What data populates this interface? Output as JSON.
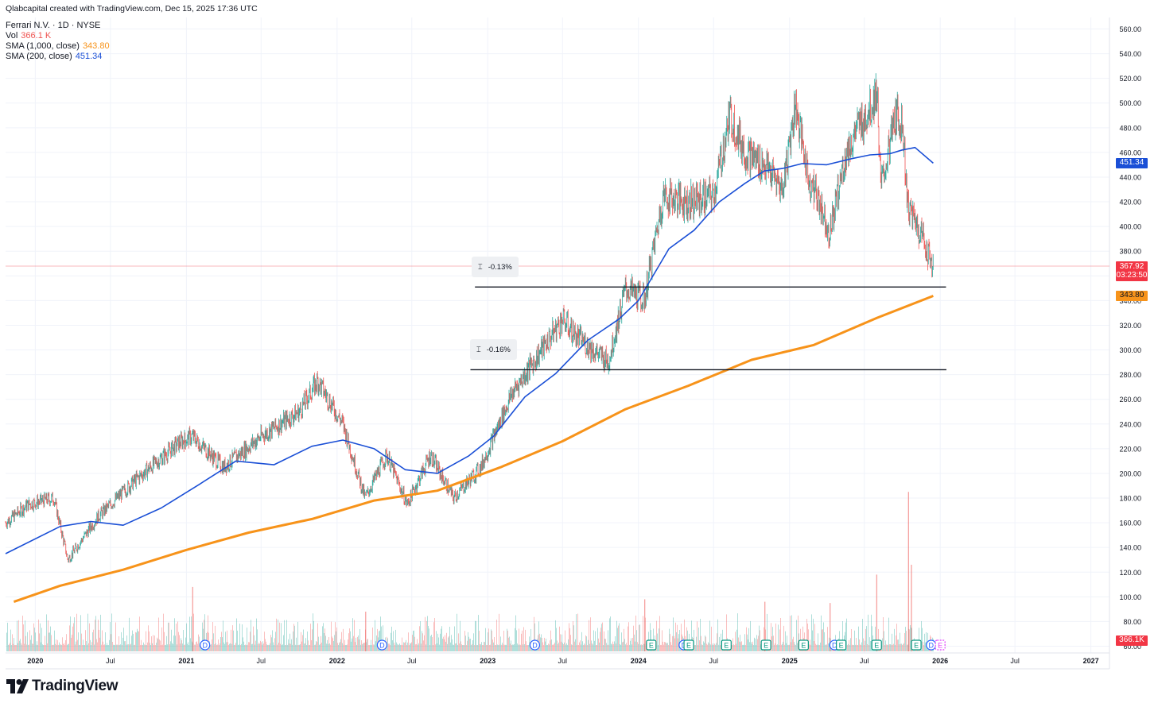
{
  "header": {
    "credit": "Qlabcapital created with TradingView.com, Dec 15, 2025 17:36 UTC",
    "symbol": "Ferrari N.V. · 1D · NYSE",
    "vol_label": "Vol",
    "vol_value": "366.1 K",
    "sma_long_label": "SMA (1,000, close)",
    "sma_long_value": "343.80",
    "sma_short_label": "SMA (200, close)",
    "sma_short_value": "451.34"
  },
  "colors": {
    "up": "#26a69a",
    "down": "#ef5350",
    "sma_long": "#f7931a",
    "sma_short": "#1a4fd6",
    "price_tag": "#f23645",
    "grid": "#f0f3fa"
  },
  "price_tags": {
    "sma_short": "451.34",
    "last_price": "367.92",
    "countdown": "03:23:50",
    "sma_long": "343.80",
    "volume": "366.1K"
  },
  "measurements": [
    {
      "label": "-0.13%",
      "price": 351
    },
    {
      "label": "-0.16%",
      "price": 284
    }
  ],
  "logo_text": "TradingView",
  "chart_data": {
    "type": "line",
    "title": "Ferrari N.V. · 1D · NYSE",
    "y_axis_ticks": [
      "60.00",
      "80.00",
      "100.00",
      "120.00",
      "140.00",
      "160.00",
      "180.00",
      "200.00",
      "220.00",
      "240.00",
      "260.00",
      "280.00",
      "300.00",
      "320.00",
      "340.00",
      "360.00",
      "380.00",
      "400.00",
      "420.00",
      "440.00",
      "460.00",
      "480.00",
      "500.00",
      "520.00",
      "540.00",
      "560.00"
    ],
    "ylim": [
      60,
      565
    ],
    "x_axis_ticks": [
      "2020",
      "Jul",
      "2021",
      "Jul",
      "2022",
      "Jul",
      "2023",
      "Jul",
      "2024",
      "Jul",
      "2025",
      "Jul",
      "2026",
      "Jul",
      "2027"
    ],
    "xlim": [
      "2019-10-21",
      "2027-02-15"
    ],
    "grid": true,
    "scale": "linear",
    "series": [
      {
        "name": "Price",
        "x": [
          "2019-10-21",
          "2019-12-15",
          "2020-02-15",
          "2020-03-20",
          "2020-06-01",
          "2020-09-01",
          "2020-12-15",
          "2021-01-15",
          "2021-04-01",
          "2021-07-01",
          "2021-10-01",
          "2021-11-15",
          "2022-01-15",
          "2022-03-10",
          "2022-05-01",
          "2022-06-20",
          "2022-08-15",
          "2022-10-10",
          "2022-12-15",
          "2023-03-01",
          "2023-05-01",
          "2023-07-01",
          "2023-08-01",
          "2023-10-20",
          "2023-12-01",
          "2024-01-15",
          "2024-03-01",
          "2024-05-01",
          "2024-07-01",
          "2024-08-10",
          "2024-09-15",
          "2024-11-01",
          "2024-12-15",
          "2025-01-15",
          "2025-02-15",
          "2025-03-15",
          "2025-04-08",
          "2025-05-15",
          "2025-06-15",
          "2025-07-15",
          "2025-08-01",
          "2025-08-10",
          "2025-09-15",
          "2025-10-01",
          "2025-10-15",
          "2025-11-15",
          "2025-12-15"
        ],
        "y": [
          160,
          175,
          180,
          130,
          165,
          195,
          225,
          230,
          205,
          230,
          250,
          275,
          240,
          180,
          215,
          175,
          215,
          180,
          205,
          265,
          295,
          325,
          312,
          290,
          350,
          340,
          425,
          420,
          425,
          490,
          460,
          450,
          430,
          500,
          440,
          420,
          395,
          455,
          480,
          495,
          510,
          430,
          490,
          485,
          415,
          395,
          367.92
        ]
      },
      {
        "name": "SMA (200, close)",
        "x": [
          "2019-10-21",
          "2020-03-01",
          "2020-05-15",
          "2020-08-01",
          "2020-11-01",
          "2021-02-01",
          "2021-05-01",
          "2021-08-01",
          "2021-11-01",
          "2022-01-15",
          "2022-04-01",
          "2022-06-15",
          "2022-09-01",
          "2022-11-15",
          "2023-01-15",
          "2023-04-01",
          "2023-06-15",
          "2023-09-01",
          "2023-11-15",
          "2024-01-01",
          "2024-03-15",
          "2024-05-15",
          "2024-07-15",
          "2024-09-15",
          "2024-11-01",
          "2024-12-15",
          "2025-02-01",
          "2025-04-01",
          "2025-06-01",
          "2025-07-15",
          "2025-09-01",
          "2025-10-01",
          "2025-11-01",
          "2025-12-15"
        ],
        "y": [
          135,
          157,
          161,
          158,
          172,
          191,
          210,
          207,
          222,
          227,
          220,
          203,
          200,
          214,
          230,
          262,
          281,
          308,
          325,
          340,
          382,
          397,
          420,
          435,
          445,
          447,
          451,
          450,
          455,
          458,
          459,
          462,
          464,
          451.34
        ]
      },
      {
        "name": "SMA (1,000, close)",
        "x": [
          "2019-11-10",
          "2020-03-01",
          "2020-08-01",
          "2021-01-01",
          "2021-06-01",
          "2021-11-01",
          "2022-04-01",
          "2022-09-01",
          "2023-02-01",
          "2023-07-01",
          "2023-12-01",
          "2024-05-01",
          "2024-10-01",
          "2025-03-01",
          "2025-08-01",
          "2025-12-15"
        ],
        "y": [
          96,
          109,
          122,
          138,
          152,
          163,
          178,
          186,
          205,
          226,
          252,
          271,
          292,
          304,
          326,
          343.8
        ]
      }
    ],
    "volume": {
      "name": "Vol",
      "last": "366.1K",
      "spikes": [
        {
          "x": "2021-01-15",
          "value": 108
        },
        {
          "x": "2022-03-10",
          "value": 88
        },
        {
          "x": "2024-01-15",
          "value": 98
        },
        {
          "x": "2024-11-01",
          "value": 96
        },
        {
          "x": "2025-04-08",
          "value": 95
        },
        {
          "x": "2025-07-30",
          "value": 118
        },
        {
          "x": "2025-10-15",
          "value": 185
        },
        {
          "x": "2025-10-22",
          "value": 126
        }
      ]
    },
    "horizontal_lines": [
      {
        "from": "2022-12-01",
        "to": "2026-01-15",
        "price": 351
      },
      {
        "from": "2022-11-20",
        "to": "2026-01-16",
        "price": 284
      }
    ],
    "event_markers": [
      {
        "x": "2021-02-15",
        "label": "D",
        "kind": "dividend"
      },
      {
        "x": "2022-04-20",
        "label": "D",
        "kind": "dividend"
      },
      {
        "x": "2023-04-25",
        "label": "D",
        "kind": "dividend"
      },
      {
        "x": "2024-02-01",
        "label": "E",
        "kind": "earnings"
      },
      {
        "x": "2024-04-20",
        "label": "D",
        "kind": "dividend"
      },
      {
        "x": "2024-05-02",
        "label": "E",
        "kind": "earnings"
      },
      {
        "x": "2024-08-01",
        "label": "E",
        "kind": "earnings"
      },
      {
        "x": "2024-11-05",
        "label": "E",
        "kind": "earnings"
      },
      {
        "x": "2025-02-04",
        "label": "E",
        "kind": "earnings"
      },
      {
        "x": "2025-04-20",
        "label": "D",
        "kind": "dividend"
      },
      {
        "x": "2025-05-06",
        "label": "E",
        "kind": "earnings"
      },
      {
        "x": "2025-07-31",
        "label": "E",
        "kind": "earnings"
      },
      {
        "x": "2025-11-04",
        "label": "E",
        "kind": "earnings"
      },
      {
        "x": "2025-12-10",
        "label": "D",
        "kind": "dividend"
      },
      {
        "x": "2026-01-01",
        "label": "E",
        "kind": "upcoming-earnings"
      }
    ]
  }
}
